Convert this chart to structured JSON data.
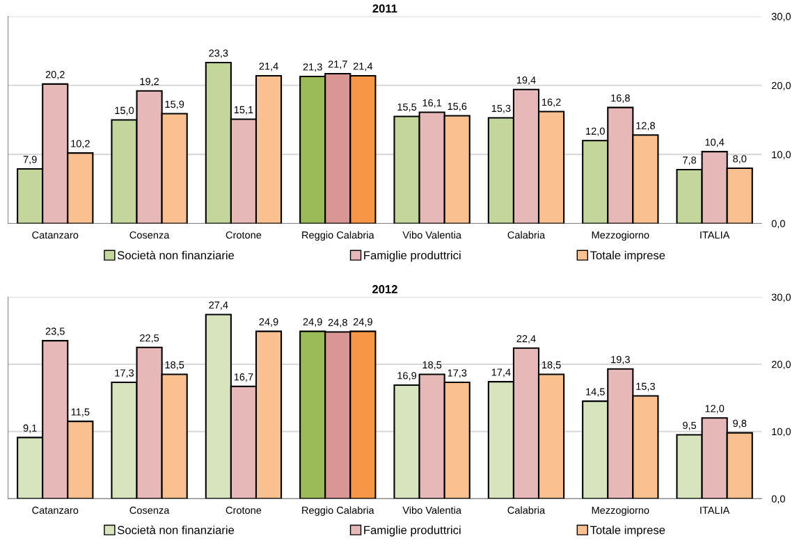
{
  "chart_data": [
    {
      "type": "bar",
      "title": "2011",
      "categories": [
        "Catanzaro",
        "Cosenza",
        "Crotone",
        "Reggio Calabria",
        "Vibo Valentia",
        "Calabria",
        "Mezzogiorno",
        "ITALIA"
      ],
      "ylim": [
        0,
        30
      ],
      "yticks": [
        {
          "value": 0,
          "label": "0,0"
        },
        {
          "value": 10,
          "label": "10,0"
        },
        {
          "value": 20,
          "label": "20,0"
        },
        {
          "value": 30,
          "label": "30,0"
        }
      ],
      "grid": "y",
      "legend": "bottom",
      "series": [
        {
          "name": "Società non finanziarie",
          "color": "#c3d69b",
          "colors": [
            "#c3d69b",
            "#c3d69b",
            "#c3d69b",
            "#9bbb59",
            "#c3d69b",
            "#c3d69b",
            "#c3d69b",
            "#c3d69b"
          ],
          "values": [
            7.9,
            15.0,
            23.3,
            21.3,
            15.5,
            15.3,
            12.0,
            7.8
          ],
          "value_labels": [
            "7,9",
            "15,0",
            "23,3",
            "21,3",
            "15,5",
            "15,3",
            "12,0",
            "7,8"
          ]
        },
        {
          "name": "Famiglie produttrici",
          "color": "#e6b9b8",
          "colors": [
            "#e6b9b8",
            "#e6b9b8",
            "#e6b9b8",
            "#d99694",
            "#e6b9b8",
            "#e6b9b8",
            "#e6b9b8",
            "#e6b9b8"
          ],
          "values": [
            20.2,
            19.2,
            15.1,
            21.7,
            16.1,
            19.4,
            16.8,
            10.4
          ],
          "value_labels": [
            "20,2",
            "19,2",
            "15,1",
            "21,7",
            "16,1",
            "19,4",
            "16,8",
            "10,4"
          ]
        },
        {
          "name": "Totale imprese",
          "color": "#fac090",
          "colors": [
            "#fac090",
            "#fac090",
            "#fac090",
            "#f79646",
            "#fac090",
            "#fac090",
            "#fac090",
            "#fac090"
          ],
          "values": [
            10.2,
            15.9,
            21.4,
            21.4,
            15.6,
            16.2,
            12.8,
            8.0
          ],
          "value_labels": [
            "10,2",
            "15,9",
            "21,4",
            "21,4",
            "15,6",
            "16,2",
            "12,8",
            "8,0"
          ]
        }
      ]
    },
    {
      "type": "bar",
      "title": "2012",
      "categories": [
        "Catanzaro",
        "Cosenza",
        "Crotone",
        "Reggio Calabria",
        "Vibo Valentia",
        "Calabria",
        "Mezzogiorno",
        "ITALIA"
      ],
      "ylim": [
        0,
        30
      ],
      "yticks": [
        {
          "value": 0,
          "label": "0,0"
        },
        {
          "value": 10,
          "label": "10,0"
        },
        {
          "value": 20,
          "label": "20,0"
        },
        {
          "value": 30,
          "label": "30,0"
        }
      ],
      "grid": "y",
      "legend": "bottom",
      "series": [
        {
          "name": "Società non finanziarie",
          "color": "#d7e4bd",
          "colors": [
            "#d7e4bd",
            "#d7e4bd",
            "#d7e4bd",
            "#9bbb59",
            "#d7e4bd",
            "#d7e4bd",
            "#d7e4bd",
            "#d7e4bd"
          ],
          "values": [
            9.1,
            17.3,
            27.4,
            24.9,
            16.9,
            17.4,
            14.5,
            9.5
          ],
          "value_labels": [
            "9,1",
            "17,3",
            "27,4",
            "24,9",
            "16,9",
            "17,4",
            "14,5",
            "9,5"
          ]
        },
        {
          "name": "Famiglie produttrici",
          "color": "#e6b9b8",
          "colors": [
            "#e6b9b8",
            "#e6b9b8",
            "#e6b9b8",
            "#d99694",
            "#e6b9b8",
            "#e6b9b8",
            "#e6b9b8",
            "#e6b9b8"
          ],
          "values": [
            23.5,
            22.5,
            16.7,
            24.8,
            18.5,
            22.4,
            19.3,
            12.0
          ],
          "value_labels": [
            "23,5",
            "22,5",
            "16,7",
            "24,8",
            "18,5",
            "22,4",
            "19,3",
            "12,0"
          ]
        },
        {
          "name": "Totale imprese",
          "color": "#fac090",
          "colors": [
            "#fac090",
            "#fac090",
            "#fac090",
            "#f79646",
            "#fac090",
            "#fac090",
            "#fac090",
            "#fac090"
          ],
          "values": [
            11.5,
            18.5,
            24.9,
            24.9,
            17.3,
            18.5,
            15.3,
            9.8
          ],
          "value_labels": [
            "11,5",
            "18,5",
            "24,9",
            "24,9",
            "17,3",
            "18,5",
            "15,3",
            "9,8"
          ]
        }
      ]
    }
  ]
}
